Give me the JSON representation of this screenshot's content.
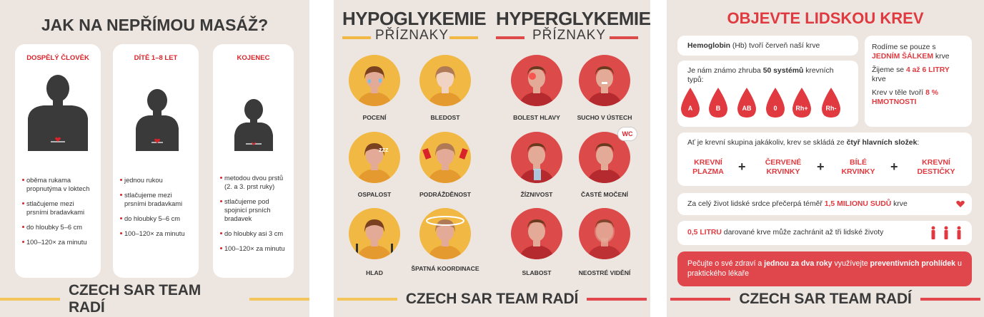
{
  "panel1": {
    "title": "JAK NA NEPŘÍMOU MASÁŽ?",
    "cards": [
      {
        "heading": "DOSPĚLÝ ČLOVĚK",
        "items": [
          "oběma rukama propnutýma v loktech",
          "stlačujeme mezi prsními bradavkami",
          "do hloubky 5–6 cm",
          "100–120× za minutu"
        ]
      },
      {
        "heading": "DÍTĚ 1–8 LET",
        "items": [
          "jednou rukou",
          "stlačujeme mezi prsními bradavkami",
          "do hloubky 5–6 cm",
          "100–120× za minutu"
        ]
      },
      {
        "heading": "KOJENEC",
        "items": [
          "metodou dvou prstů (2. a 3. prst ruky)",
          "stlačujeme pod spojnicí prsních bradavek",
          "do hloubky asi 3 cm",
          "100–120× za minutu"
        ]
      }
    ],
    "footer": "CZECH SAR TEAM RADÍ"
  },
  "panel2": {
    "left_title": "HYPOGLYKEMIE",
    "left_subtitle": "PŘÍZNAKY",
    "right_title": "HYPERGLYKEMIE",
    "right_subtitle": "PŘÍZNAKY",
    "hypo": [
      "POCENÍ",
      "BLEDOST",
      "OSPALOST",
      "PODRÁŽDĚNOST",
      "HLAD",
      "ŠPATNÁ KOORDINACE"
    ],
    "hyper": [
      "BOLEST HLAVY",
      "SUCHO V ÚSTECH",
      "ŽÍZNIVOST",
      "ČASTÉ MOČENÍ",
      "SLABOST",
      "NEOSTRÉ VIDĚNÍ"
    ],
    "wc_label": "WC",
    "footer": "CZECH SAR TEAM RADÍ",
    "colors": {
      "hypo": "#f1b843",
      "hyper": "#dc4a4a"
    }
  },
  "panel3": {
    "title": "OBJEVTE LIDSKOU KREV",
    "hemo": {
      "b1": "Hemoglobin",
      "t1": " (Hb) tvoří červeň naší krve"
    },
    "types": {
      "t1": "Je nám známo zhruba ",
      "b1": "50 systémů",
      "t2": " krevních typů:",
      "drops": [
        "A",
        "B",
        "AB",
        "0",
        "Rh+",
        "Rh-"
      ]
    },
    "born": {
      "t1": "Rodíme se pouze s ",
      "r1": "JEDNÍM ŠÁLKEM",
      "t2": " krve",
      "t3": "Žijeme se ",
      "r2": "4 až 6 LITRY",
      "t4": " krve",
      "t5": "Krev v těle tvoří ",
      "r3": "8 % HMOTNOSTI"
    },
    "components": {
      "t1": "Ať je krevní skupina jakákoliv, krev se skládá ze ",
      "b1": "čtyř hlavních složek",
      "t2": ":",
      "items": [
        [
          "KREVNÍ",
          "PLAZMA"
        ],
        [
          "ČERVENÉ",
          "KRVINKY"
        ],
        [
          "BÍLÉ",
          "KRVINKY"
        ],
        [
          "KREVNÍ",
          "DESTIČKY"
        ]
      ]
    },
    "heart": {
      "t1": "Za celý život lidské srdce přečerpá téměř ",
      "r1": "1,5 MILIONU SUDŮ",
      "t2": " krve"
    },
    "donation": {
      "r1": "0,5 LITRU",
      "t1": " darované krve může zachránit až tři lidské životy"
    },
    "care": {
      "t1": "Pečujte o své zdraví a ",
      "b1": "jednou za dva roky",
      "t2": " využívejte ",
      "b2": "preventivních prohlídek",
      "t3": " u praktického lékaře"
    },
    "footer": "CZECH SAR TEAM RADÍ"
  }
}
